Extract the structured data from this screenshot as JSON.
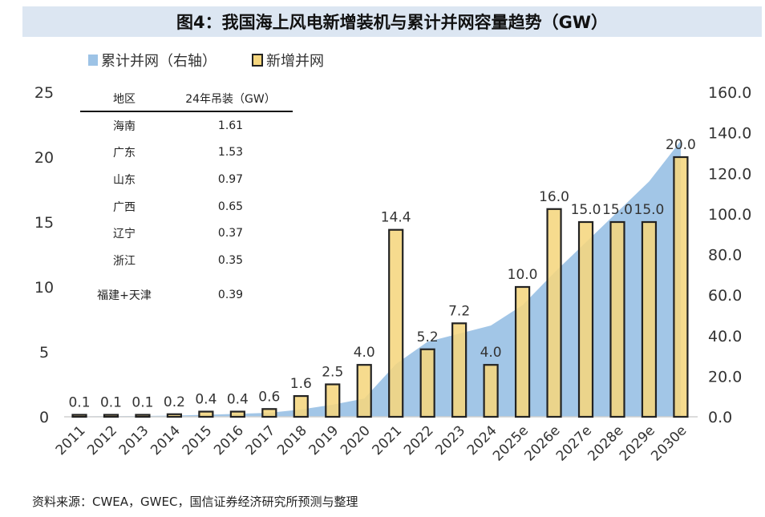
{
  "title": "图4：我国海上风电新增装机与累计并网容量趋势（GW）",
  "legend": {
    "cumulative": "累计并网（右轴）",
    "new": "新增并网"
  },
  "table": {
    "headers": [
      "地区",
      "24年吊装（GW）"
    ],
    "rows": [
      {
        "region": "海南",
        "value": "1.61"
      },
      {
        "region": "广东",
        "value": "1.53"
      },
      {
        "region": "山东",
        "value": "0.97"
      },
      {
        "region": "广西",
        "value": "0.65"
      },
      {
        "region": "辽宁",
        "value": "0.37"
      },
      {
        "region": "浙江",
        "value": "0.35"
      },
      {
        "region": "福建+天津",
        "value": "0.39"
      }
    ]
  },
  "source": "资料来源：CWEA，GWEC，国信证券经济研究所预测与整理",
  "colors": {
    "area": "#9dc3e6",
    "bar_fill": "#f5d67e",
    "bar_stroke": "#222222",
    "title_bg": "#dce6f2"
  },
  "chart_data": {
    "type": "bar",
    "title": "图4：我国海上风电新增装机与累计并网容量趋势（GW）",
    "categories": [
      "2011",
      "2012",
      "2013",
      "2014",
      "2015",
      "2016",
      "2017",
      "2018",
      "2019",
      "2020",
      "2021",
      "2022",
      "2023",
      "2024",
      "2025e",
      "2026e",
      "2027e",
      "2028e",
      "2029e",
      "2030e"
    ],
    "series": [
      {
        "name": "新增并网",
        "type": "bar",
        "axis": "left",
        "values": [
          0.1,
          0.1,
          0.1,
          0.2,
          0.4,
          0.4,
          0.6,
          1.6,
          2.5,
          4.0,
          14.4,
          5.2,
          7.2,
          4.0,
          10.0,
          16.0,
          15.0,
          15.0,
          15.0,
          20.0
        ],
        "labels": [
          "0.1",
          "0.1",
          "0.1",
          "0.2",
          "0.4",
          "0.4",
          "0.6",
          "1.6",
          "2.5",
          "4.0",
          "14.4",
          "5.2",
          "7.2",
          "4.0",
          "10.0",
          "16.0",
          "15.0",
          "15.0",
          "15.0",
          "20.0"
        ]
      },
      {
        "name": "累计并网（右轴）",
        "type": "area",
        "axis": "right",
        "values": [
          0.2,
          0.3,
          0.4,
          0.6,
          1.0,
          1.5,
          2.0,
          3.6,
          6.0,
          9.0,
          26.0,
          37.0,
          41.0,
          45.0,
          55.0,
          71.0,
          86.0,
          101.0,
          116.0,
          136.0
        ]
      }
    ],
    "left_axis": {
      "range": [
        0,
        25
      ],
      "ticks": [
        "0",
        "5",
        "10",
        "15",
        "20",
        "25"
      ],
      "tick_values": [
        0,
        5,
        10,
        15,
        20,
        25
      ]
    },
    "right_axis": {
      "range": [
        0,
        160
      ],
      "ticks": [
        "0.0",
        "20.0",
        "40.0",
        "60.0",
        "80.0",
        "100.0",
        "120.0",
        "140.0",
        "160.0"
      ],
      "tick_values": [
        0,
        20,
        40,
        60,
        80,
        100,
        120,
        140,
        160
      ]
    },
    "grid": false,
    "legend_position": "top-left"
  }
}
